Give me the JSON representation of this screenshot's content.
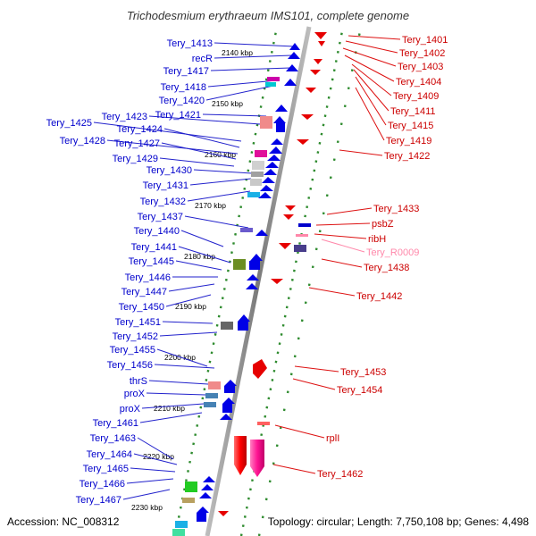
{
  "title": "Trichodesmium erythraeum IMS101, complete genome",
  "accession": "Accession: NC_008312",
  "topology": "Topology: circular; Length: 7,750,108 bp; Genes: 4,498",
  "colors": {
    "minus_strand": "#0000e6",
    "plus_strand": "#e60000",
    "rna_gene": "#ff88aa",
    "backbone": "#888888",
    "tick_dot": "#2e8b2e"
  },
  "kbp_ticks": [
    "2140 kbp",
    "2150 kbp",
    "2160 kbp",
    "2170 kbp",
    "2180 kbp",
    "2190 kbp",
    "2200 kbp",
    "2210 kbp",
    "2220 kbp",
    "2230 kbp"
  ],
  "left_labels": [
    "Tery_1413",
    "recR",
    "Tery_1417",
    "Tery_1418",
    "Tery_1420",
    "Tery_1421",
    "Tery_1423",
    "Tery_1425",
    "Tery_1424",
    "Tery_1428",
    "Tery_1427",
    "Tery_1429",
    "Tery_1430",
    "Tery_1431",
    "Tery_1432",
    "Tery_1437",
    "Tery_1440",
    "Tery_1441",
    "Tery_1445",
    "Tery_1446",
    "Tery_1447",
    "Tery_1450",
    "Tery_1451",
    "Tery_1452",
    "Tery_1455",
    "Tery_1456",
    "thrS",
    "proX",
    "proX",
    "Tery_1461",
    "Tery_1463",
    "Tery_1464",
    "Tery_1465",
    "Tery_1466",
    "Tery_1467"
  ],
  "right_labels": [
    "Tery_1401",
    "Tery_1402",
    "Tery_1403",
    "Tery_1404",
    "Tery_1409",
    "Tery_1411",
    "Tery_1415",
    "Tery_1419",
    "Tery_1422",
    "Tery_1433",
    "psbZ",
    "ribH",
    "Tery_R0009",
    "Tery_1438",
    "Tery_1442",
    "Tery_1453",
    "Tery_1454",
    "rplI",
    "Tery_1462"
  ]
}
